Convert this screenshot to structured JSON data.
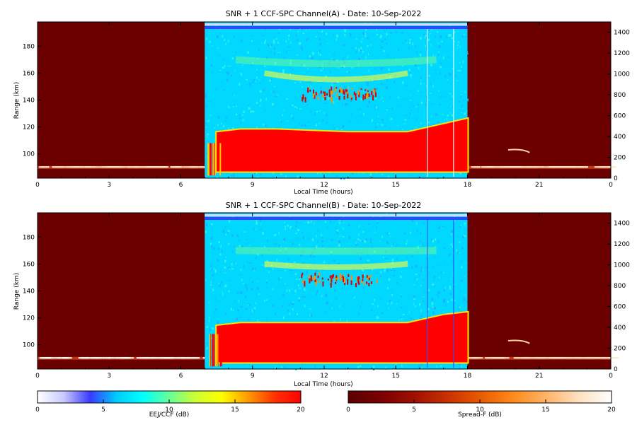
{
  "chart_data": [
    {
      "type": "heatmap",
      "title": "SNR + 1 CCF-SPC Channel(A) - Date: 10-Sep-2022",
      "xlabel": "Local Time (hours)",
      "ylabel": "Range (km)",
      "xlim": [
        0,
        24
      ],
      "ylim": [
        82,
        198
      ],
      "y2lim": [
        0,
        1500
      ],
      "x_ticks": [
        "0",
        "3",
        "6",
        "9",
        "12",
        "15",
        "18",
        "21",
        "0"
      ],
      "x_tick_values": [
        0,
        3,
        6,
        9,
        12,
        15,
        18,
        21,
        24
      ],
      "y_ticks": [
        100,
        120,
        140,
        160,
        180
      ],
      "y2_ticks": [
        0,
        200,
        400,
        600,
        800,
        1000,
        1200,
        1400
      ],
      "day_window_hours": [
        7,
        18
      ],
      "eej_layer_top_km": [
        [
          7.5,
          116
        ],
        [
          8.5,
          118
        ],
        [
          10,
          118
        ],
        [
          13,
          116
        ],
        [
          15.5,
          116
        ],
        [
          17,
          122
        ],
        [
          18,
          126
        ]
      ],
      "eej_layer_bottom_km": 87,
      "night_trace_km": 90,
      "colorscale_left": "EEJ/CCF (dB)",
      "colorscale_right": "Spread-F (dB)"
    },
    {
      "type": "heatmap",
      "title": "SNR + 1 CCF-SPC Channel(B) - Date: 10-Sep-2022",
      "xlabel": "Local Time (hours)",
      "ylabel": "Range (km)",
      "xlim": [
        0,
        24
      ],
      "ylim": [
        82,
        198
      ],
      "y2lim": [
        0,
        1500
      ],
      "x_ticks": [
        "0",
        "3",
        "6",
        "9",
        "12",
        "15",
        "18",
        "21",
        "0"
      ],
      "x_tick_values": [
        0,
        3,
        6,
        9,
        12,
        15,
        18,
        21,
        24
      ],
      "y_ticks": [
        100,
        120,
        140,
        160,
        180
      ],
      "y2_ticks": [
        0,
        200,
        400,
        600,
        800,
        1000,
        1200,
        1400
      ],
      "day_window_hours": [
        7,
        18
      ],
      "eej_layer_top_km": [
        [
          7.5,
          114
        ],
        [
          8.5,
          116
        ],
        [
          10,
          116
        ],
        [
          13,
          116
        ],
        [
          15.5,
          116
        ],
        [
          17,
          122
        ],
        [
          18,
          124
        ]
      ],
      "eej_layer_bottom_km": 87,
      "night_trace_km": 90,
      "colorscale_left": "EEJ/CCF (dB)",
      "colorscale_right": "Spread-F (dB)"
    }
  ],
  "colorbars": [
    {
      "label": "EEJ/CCF (dB)",
      "ticks": [
        "0",
        "5",
        "10",
        "15",
        "20"
      ],
      "range": [
        0,
        20
      ],
      "colors": [
        "#ffffff",
        "#c9c9ff",
        "#3a3aff",
        "#00ccff",
        "#00ffff",
        "#66ff99",
        "#ccff33",
        "#ffff00",
        "#ff9900",
        "#ff3300",
        "#ff0000"
      ]
    },
    {
      "label": "Spread-F (dB)",
      "ticks": [
        "0",
        "5",
        "10",
        "15",
        "20"
      ],
      "range": [
        0,
        20
      ],
      "colors": [
        "#5c0000",
        "#7a0000",
        "#a01000",
        "#c83000",
        "#e85a00",
        "#ff8a1a",
        "#ffb366",
        "#ffe0c0",
        "#ffffff"
      ]
    }
  ],
  "palette": {
    "night_bg": "#6b0000",
    "day_bg": "#00d8ff",
    "eej_red": "#ff0000",
    "top_band": "#4040ff"
  }
}
